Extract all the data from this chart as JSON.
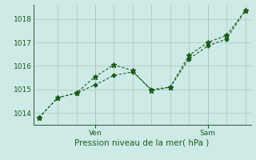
{
  "title": "Pression niveau de la mer( hPa )",
  "bg_color": "#ceeae7",
  "grid_color": "#b0c8c6",
  "line_color": "#1a5c1a",
  "x_ticks_labels": [
    "Ven",
    "Sam"
  ],
  "x_ticks_pos": [
    3,
    9
  ],
  "y_ticks": [
    1014,
    1015,
    1016,
    1017,
    1018
  ],
  "ylim": [
    1013.5,
    1018.6
  ],
  "series1_x": [
    0,
    1,
    2,
    3,
    4,
    5,
    6,
    7,
    8,
    9,
    10,
    11
  ],
  "series1_y": [
    1013.8,
    1014.65,
    1014.85,
    1015.55,
    1016.05,
    1015.8,
    1014.95,
    1015.1,
    1016.45,
    1017.0,
    1017.3,
    1018.35
  ],
  "series2_x": [
    0,
    1,
    2,
    3,
    4,
    5,
    6,
    7,
    8,
    9,
    10,
    11
  ],
  "series2_y": [
    1013.8,
    1014.65,
    1014.85,
    1015.2,
    1015.6,
    1015.75,
    1015.0,
    1015.1,
    1016.3,
    1016.85,
    1017.15,
    1018.35
  ],
  "xlim": [
    -0.3,
    11.3
  ]
}
